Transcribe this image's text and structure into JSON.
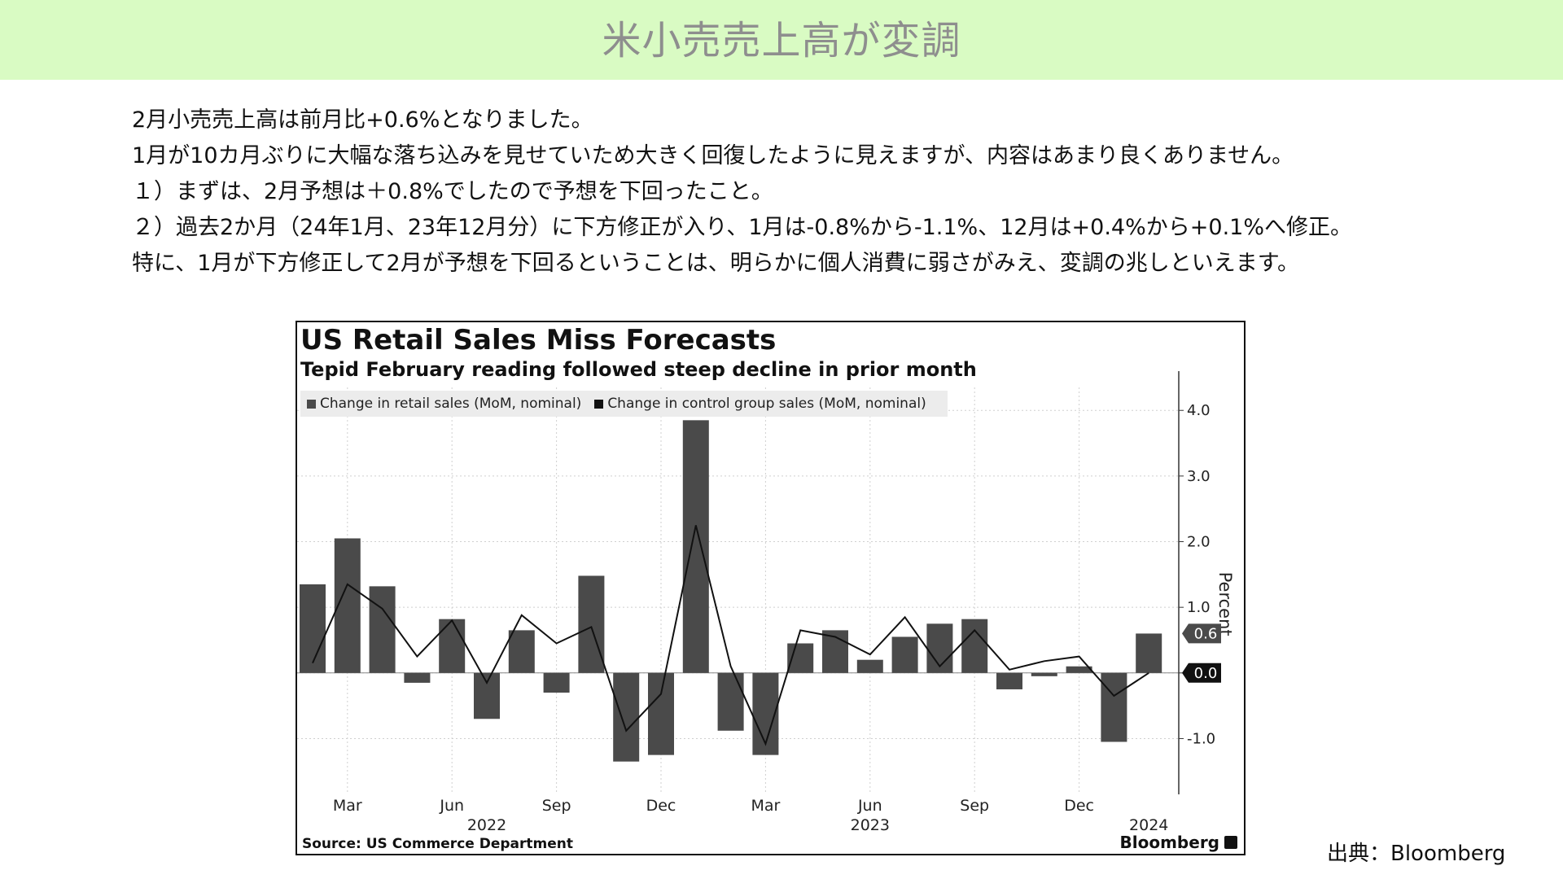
{
  "page": {
    "title": "米小売売上高が変調",
    "paragraphs": [
      "2月小売売上高は前月比+0.6%となりました。",
      "1月が10カ月ぶりに大幅な落ち込みを見せていため大きく回復したように見えますが、内容はあまり良くありません。",
      "１）まずは、2月予想は＋0.8%でしたので予想を下回ったこと。",
      "２）過去2か月（24年1月、23年12月分）に下方修正が入り、1月は-0.8%から-1.1%、12月は+0.4%から+0.1%へ修正。",
      "特に、1月が下方修正して2月が予想を下回るということは、明らかに個人消費に弱さがみえ、変調の兆しといえます。"
    ],
    "credit": "出典：Bloomberg"
  },
  "chart_data": {
    "type": "bar",
    "title": "US Retail Sales Miss Forecasts",
    "subtitle": "Tepid February reading followed steep decline in prior month",
    "legend": [
      "Change in retail sales (MoM, nominal)",
      "Change in control group sales (MoM, nominal)"
    ],
    "legend_position": "top-left",
    "ylabel": "Percent",
    "ylim": [
      -1.85,
      4.35
    ],
    "yticks": [
      -1.0,
      0.0,
      1.0,
      2.0,
      3.0,
      4.0
    ],
    "ytick_labels": [
      "-1.0",
      "0.0",
      "1.0",
      "2.0",
      "3.0",
      "4.0"
    ],
    "grid": true,
    "x": [
      "2022-02",
      "2022-03",
      "2022-04",
      "2022-05",
      "2022-06",
      "2022-07",
      "2022-08",
      "2022-09",
      "2022-10",
      "2022-11",
      "2022-12",
      "2023-01",
      "2023-02",
      "2023-03",
      "2023-04",
      "2023-05",
      "2023-06",
      "2023-07",
      "2023-08",
      "2023-09",
      "2023-10",
      "2023-11",
      "2023-12",
      "2024-01",
      "2024-02"
    ],
    "x_tick_labels": [
      {
        "x": "2022-03",
        "label": "Mar"
      },
      {
        "x": "2022-06",
        "label": "Jun"
      },
      {
        "x": "2022-09",
        "label": "Sep"
      },
      {
        "x": "2022-12",
        "label": "Dec"
      },
      {
        "x": "2023-03",
        "label": "Mar"
      },
      {
        "x": "2023-06",
        "label": "Jun"
      },
      {
        "x": "2023-09",
        "label": "Sep"
      },
      {
        "x": "2023-12",
        "label": "Dec"
      }
    ],
    "year_labels": [
      {
        "x": "2022-07",
        "label": "2022"
      },
      {
        "x": "2023-06",
        "label": "2023"
      },
      {
        "x": "2024-02",
        "label": "2024"
      }
    ],
    "series": [
      {
        "name": "Change in retail sales (MoM, nominal)",
        "type": "bar",
        "color": "#4a4a4a",
        "values": [
          1.35,
          2.05,
          1.32,
          -0.15,
          0.82,
          -0.7,
          0.65,
          -0.3,
          1.48,
          -1.35,
          -1.25,
          3.85,
          -0.88,
          -1.25,
          0.45,
          0.65,
          0.2,
          0.55,
          0.75,
          0.82,
          -0.25,
          -0.05,
          0.1,
          -1.05,
          0.6
        ]
      },
      {
        "name": "Change in control group sales (MoM, nominal)",
        "type": "line",
        "color": "#111111",
        "values": [
          0.15,
          1.35,
          0.98,
          0.25,
          0.8,
          -0.15,
          0.88,
          0.45,
          0.7,
          -0.88,
          -0.32,
          2.25,
          0.1,
          -1.08,
          0.65,
          0.55,
          0.28,
          0.85,
          0.1,
          0.65,
          0.05,
          0.18,
          0.25,
          -0.35,
          0.0
        ]
      }
    ],
    "callouts": [
      {
        "value": "0.6",
        "color": "#4a4a4a"
      },
      {
        "value": "0.0",
        "color": "#111111"
      }
    ],
    "source": "Source: US Commerce Department",
    "brand": "Bloomberg"
  }
}
